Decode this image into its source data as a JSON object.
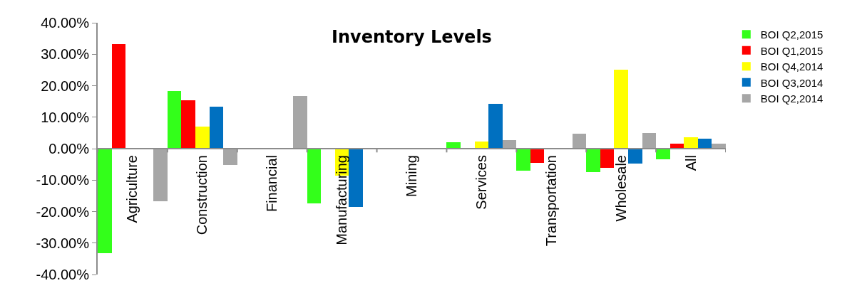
{
  "chart_data": {
    "type": "bar",
    "title": "Inventory Levels",
    "categories": [
      "Agriculture",
      "Construction",
      "Financial",
      "Manufacturing",
      "Mining",
      "Services",
      "Transportation",
      "Wholesale",
      "All"
    ],
    "series": [
      {
        "name": "BOI Q2,2015",
        "color": "#33ff1a",
        "values": [
          -33.3,
          18.2,
          null,
          -17.3,
          null,
          2.0,
          -7.1,
          -7.5,
          -3.4
        ]
      },
      {
        "name": "BOI Q1,2015",
        "color": "#ff0000",
        "values": [
          33.3,
          15.4,
          null,
          null,
          null,
          null,
          -4.5,
          -6.1,
          1.5
        ]
      },
      {
        "name": "BOI Q4,2014",
        "color": "#ffff00",
        "values": [
          null,
          7.1,
          null,
          -8.6,
          null,
          2.3,
          null,
          25.0,
          3.6
        ]
      },
      {
        "name": "BOI Q3,2014",
        "color": "#0070c0",
        "values": [
          null,
          13.3,
          null,
          -18.6,
          null,
          14.3,
          null,
          -4.8,
          3.2
        ]
      },
      {
        "name": "BOI Q2,2014",
        "color": "#a6a6a6",
        "values": [
          -16.7,
          -5.3,
          16.7,
          null,
          null,
          2.7,
          4.8,
          5.0,
          1.5
        ]
      }
    ],
    "ylim": [
      -40,
      40
    ],
    "yticks": [
      {
        "value": -40,
        "label": "-40.00%"
      },
      {
        "value": -30,
        "label": "-30.00%"
      },
      {
        "value": -20,
        "label": "-20.00%"
      },
      {
        "value": -10,
        "label": "-10.00%"
      },
      {
        "value": 0,
        "label": "0.00%"
      },
      {
        "value": 10,
        "label": "10.00%"
      },
      {
        "value": 20,
        "label": "20.00%"
      },
      {
        "value": 30,
        "label": "30.00%"
      },
      {
        "value": 40,
        "label": "40.00%"
      }
    ],
    "legend": "right"
  }
}
